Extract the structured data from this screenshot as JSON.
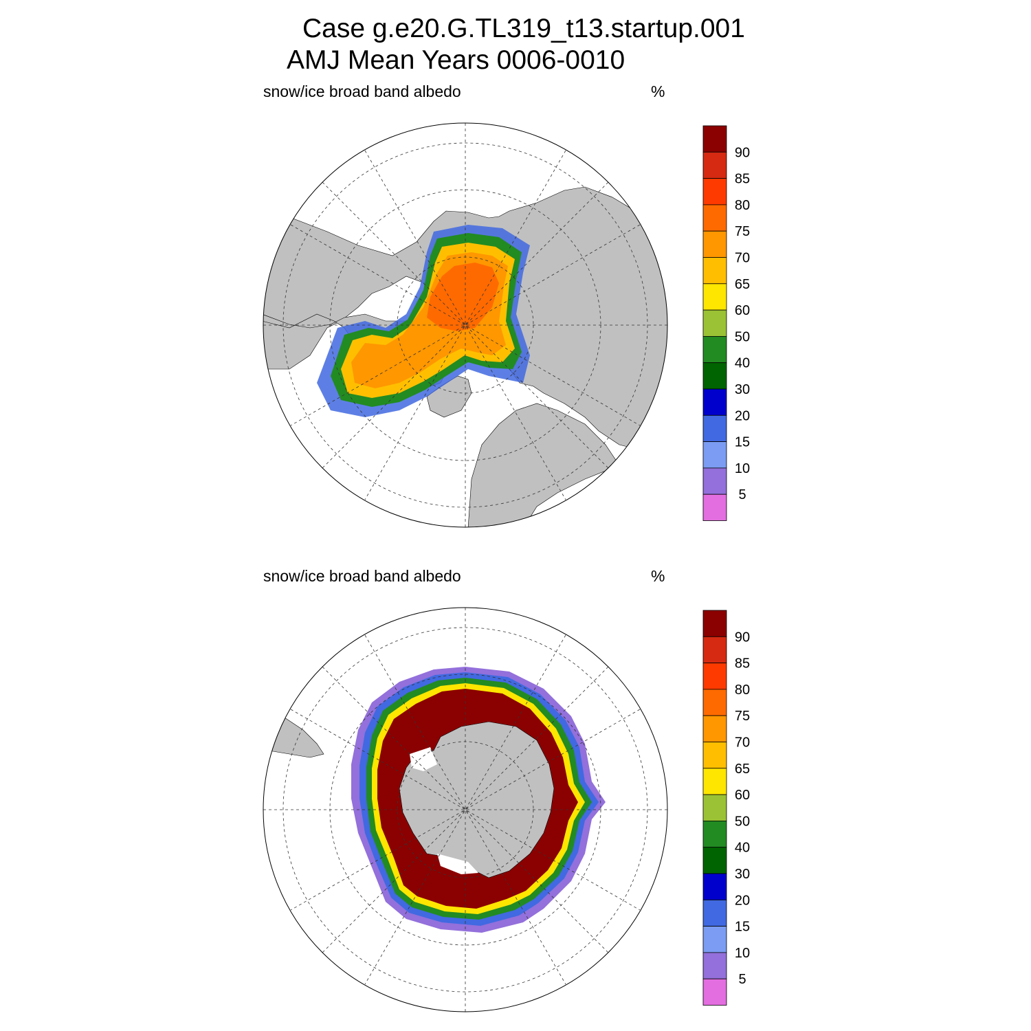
{
  "title": {
    "line1": "Case g.e20.G.TL319_t13.startup.001",
    "line2": "AMJ Mean   Years 0006-0010"
  },
  "panels": [
    {
      "hemisphere": "north",
      "label": "snow/ice broad band albedo",
      "units": "%"
    },
    {
      "hemisphere": "south",
      "label": "snow/ice broad band albedo",
      "units": "%"
    }
  ],
  "colorbar": {
    "tick_labels": [
      "90",
      "85",
      "80",
      "75",
      "70",
      "65",
      "60",
      "50",
      "40",
      "30",
      "20",
      "15",
      "10",
      "5"
    ],
    "colors_top_to_bottom": [
      "#8b0000",
      "#d62a12",
      "#ff3a00",
      "#ff6a00",
      "#ff9700",
      "#ffbf00",
      "#ffe600",
      "#9bc234",
      "#228b22",
      "#006400",
      "#0000cd",
      "#4169e1",
      "#7b9cf2",
      "#9370db",
      "#e36ee0"
    ]
  },
  "map_colors": {
    "land": "#c0c0c0",
    "ocean": "#ffffff"
  }
}
